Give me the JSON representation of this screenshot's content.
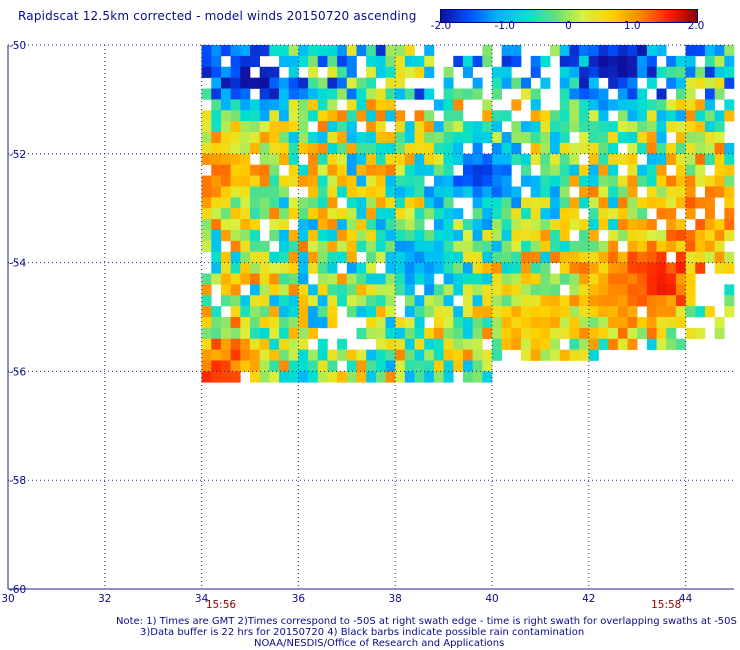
{
  "title": "Rapidscat 12.5km corrected - model winds 20150720 ascending",
  "colorbar": {
    "ticks": [
      {
        "value": -2.0,
        "label": "-2.0"
      },
      {
        "value": -1.0,
        "label": "-1.0"
      },
      {
        "value": 0,
        "label": "0"
      },
      {
        "value": 1.0,
        "label": "1.0"
      },
      {
        "value": 2.0,
        "label": "2.0"
      }
    ],
    "range": [
      -2.0,
      2.0
    ],
    "colors": [
      "#1010a0",
      "#0050ff",
      "#00b4ff",
      "#00e0d0",
      "#60e080",
      "#d8f040",
      "#ffd000",
      "#ff8800",
      "#ff2000",
      "#900000"
    ]
  },
  "notes": {
    "line1": "Note: 1) Times are GMT 2)Times correspond to -50S at right swath edge - time is right swath for overlapping swaths at -50S",
    "line2": "3)Data buffer is 22 hrs for 20150720 4) Black barbs indicate possible rain contamination",
    "line3": "NOAA/NESDIS/Office of Research and Applications"
  },
  "chart_data": {
    "type": "heatmap",
    "title": "Rapidscat 12.5km corrected - model winds 20150720 ascending",
    "xlim": [
      30,
      45
    ],
    "ylim": [
      -60,
      -50
    ],
    "x_ticks": [
      "30",
      "32",
      "34",
      "36",
      "38",
      "40",
      "42",
      "44"
    ],
    "y_ticks": [
      "-50",
      "-52",
      "-54",
      "-56",
      "-58",
      "-60"
    ],
    "grid": true,
    "time_labels": [
      {
        "lon": 34.4,
        "label": "15:56"
      },
      {
        "lon": 43.6,
        "label": "15:58"
      }
    ],
    "value_range": [
      -2.0,
      2.0
    ],
    "cell_size_deg": [
      0.2,
      0.2
    ],
    "swath_lon_range": [
      34.0,
      45.0
    ],
    "swath_lat_range": [
      -56.2,
      -50.0
    ],
    "regions": [
      {
        "description": "strong positive difference",
        "center": [
          43.4,
          -54.3
        ],
        "value": 2.0
      },
      {
        "description": "positive band",
        "center": [
          42.6,
          -54.5
        ],
        "value": 1.2
      },
      {
        "description": "positive patch",
        "center": [
          40.9,
          -55.1
        ],
        "value": 0.9
      },
      {
        "description": "positive patch",
        "center": [
          44.3,
          -53.0
        ],
        "value": 1.4
      },
      {
        "description": "positive edge",
        "center": [
          34.4,
          -56.0
        ],
        "value": 1.6
      },
      {
        "description": "positive edge",
        "center": [
          34.3,
          -52.3
        ],
        "value": 1.3
      },
      {
        "description": "negative patch",
        "center": [
          39.8,
          -52.4
        ],
        "value": -1.8
      },
      {
        "description": "negative band",
        "center": [
          38.5,
          -54.0
        ],
        "value": -1.3
      },
      {
        "description": "negative north edge",
        "center": [
          42.6,
          -50.4
        ],
        "value": -1.6
      },
      {
        "description": "negative north-west",
        "center": [
          35.0,
          -50.6
        ],
        "value": -1.5
      }
    ]
  }
}
